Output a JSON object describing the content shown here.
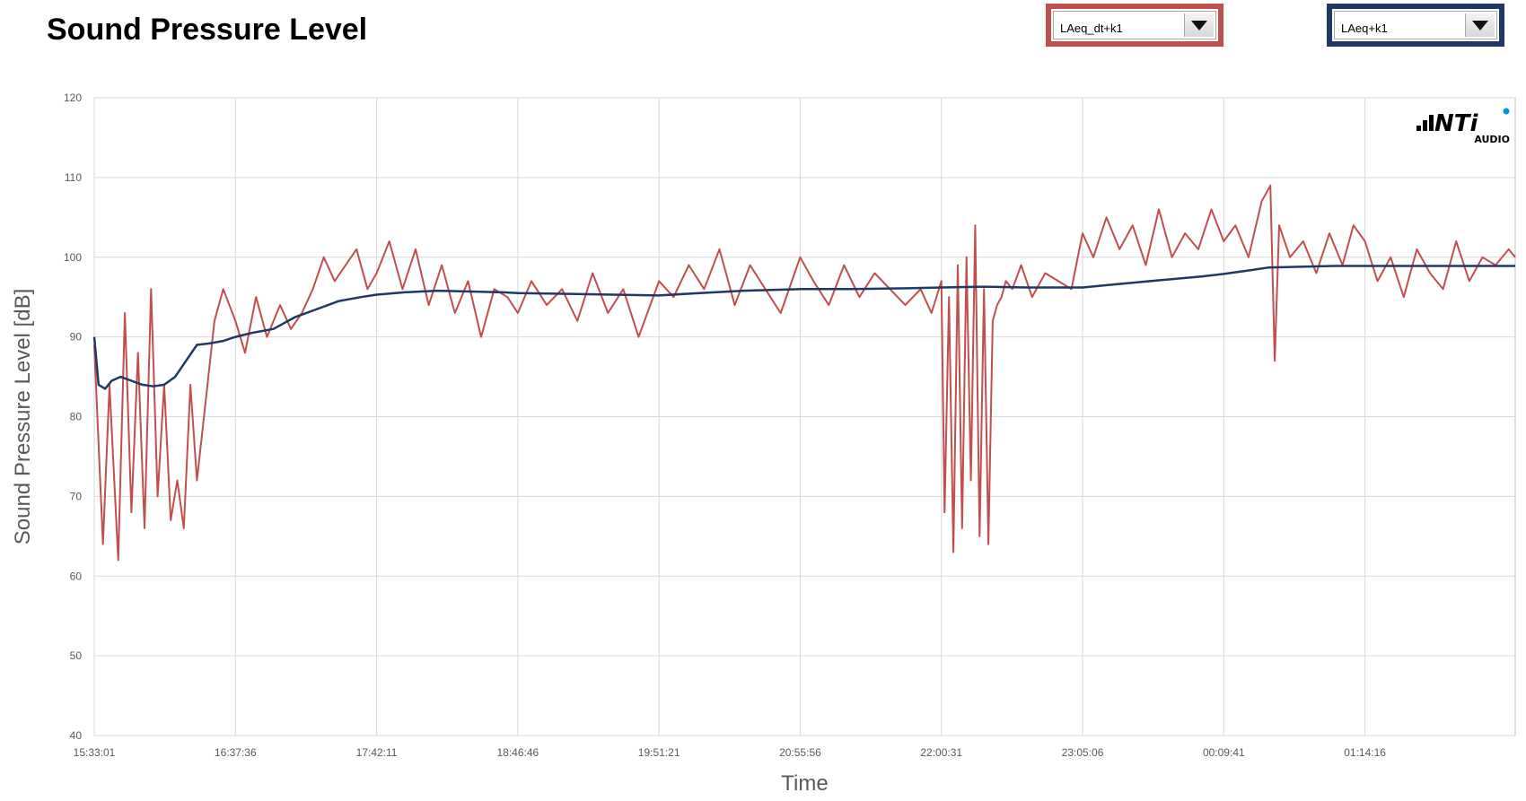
{
  "title": "Sound Pressure Level",
  "dropdowns": [
    {
      "value": "LAeq_dt+k1",
      "border_color": "#c0504d"
    },
    {
      "value": "LAeq+k1",
      "border_color": "#1f3864"
    }
  ],
  "logo": {
    "main": "NTi",
    "sub": "AUDIO"
  },
  "colors": {
    "series_dt": "#c0504d",
    "series_cum": "#1f3864",
    "grid": "#d9d9d9",
    "axis_text": "#595959"
  },
  "chart_data": {
    "type": "line",
    "xlabel": "Time",
    "ylabel": "Sound Pressure Level [dB]",
    "ylim": [
      40,
      120
    ],
    "yticks": [
      40,
      50,
      60,
      70,
      80,
      90,
      100,
      110,
      120
    ],
    "x_start": "15:33:01",
    "x_end": "02:23:00",
    "xticks": [
      "15:33:01",
      "16:37:36",
      "17:42:11",
      "18:46:46",
      "19:51:21",
      "20:55:56",
      "22:00:31",
      "23:05:06",
      "00:09:41",
      "01:14:16"
    ],
    "grid": true,
    "series": [
      {
        "name": "LAeq_dt+k1",
        "x": [
          "15:33:01",
          "15:37:00",
          "15:40:00",
          "15:44:00",
          "15:47:00",
          "15:50:00",
          "15:53:00",
          "15:56:00",
          "15:59:00",
          "16:02:00",
          "16:05:00",
          "16:08:00",
          "16:11:00",
          "16:14:00",
          "16:17:00",
          "16:20:00",
          "16:24:00",
          "16:28:00",
          "16:32:00",
          "16:37:36",
          "16:42:00",
          "16:47:00",
          "16:52:00",
          "16:58:00",
          "17:03:00",
          "17:08:00",
          "17:13:00",
          "17:18:00",
          "17:23:00",
          "17:28:00",
          "17:33:00",
          "17:38:00",
          "17:42:11",
          "17:48:00",
          "17:54:00",
          "18:00:00",
          "18:06:00",
          "18:12:00",
          "18:18:00",
          "18:24:00",
          "18:30:00",
          "18:36:00",
          "18:42:00",
          "18:46:46",
          "18:53:00",
          "19:00:00",
          "19:07:00",
          "19:14:00",
          "19:21:00",
          "19:28:00",
          "19:35:00",
          "19:42:00",
          "19:51:21",
          "19:58:00",
          "20:05:00",
          "20:12:00",
          "20:19:00",
          "20:26:00",
          "20:33:00",
          "20:40:00",
          "20:47:00",
          "20:55:56",
          "21:02:00",
          "21:09:00",
          "21:16:00",
          "21:23:00",
          "21:30:00",
          "21:37:00",
          "21:44:00",
          "21:51:00",
          "21:56:00",
          "22:00:31",
          "22:02:00",
          "22:04:00",
          "22:06:00",
          "22:08:00",
          "22:10:00",
          "22:12:00",
          "22:14:00",
          "22:16:00",
          "22:18:00",
          "22:20:00",
          "22:22:00",
          "22:24:00",
          "22:26:00",
          "22:28:00",
          "22:30:00",
          "22:33:00",
          "22:37:00",
          "22:42:00",
          "22:48:00",
          "22:54:00",
          "23:00:00",
          "23:05:06",
          "23:10:00",
          "23:16:00",
          "23:22:00",
          "23:28:00",
          "23:34:00",
          "23:40:00",
          "23:46:00",
          "23:52:00",
          "23:58:00",
          "00:04:00",
          "00:09:41",
          "00:15:00",
          "00:21:00",
          "00:27:00",
          "00:31:00",
          "00:33:00",
          "00:35:00",
          "00:40:00",
          "00:46:00",
          "00:52:00",
          "00:58:00",
          "01:04:00",
          "01:09:00",
          "01:14:16",
          "01:20:00",
          "01:26:00",
          "01:32:00",
          "01:38:00",
          "01:44:00",
          "01:50:00",
          "01:56:00",
          "02:02:00",
          "02:08:00",
          "02:14:00",
          "02:20:00",
          "02:23:00"
        ],
        "y": [
          89,
          64,
          84,
          62,
          93,
          68,
          88,
          66,
          96,
          70,
          84,
          67,
          72,
          66,
          84,
          72,
          82,
          92,
          96,
          92,
          88,
          95,
          90,
          94,
          91,
          93,
          96,
          100,
          97,
          99,
          101,
          96,
          98,
          102,
          96,
          101,
          94,
          99,
          93,
          97,
          90,
          96,
          95,
          93,
          97,
          94,
          96,
          92,
          98,
          93,
          96,
          90,
          97,
          95,
          99,
          96,
          101,
          94,
          99,
          96,
          93,
          100,
          97,
          94,
          99,
          95,
          98,
          96,
          94,
          96,
          93,
          97,
          68,
          95,
          63,
          99,
          66,
          100,
          72,
          104,
          65,
          96,
          64,
          92,
          94,
          95,
          97,
          96,
          99,
          95,
          98,
          97,
          96,
          103,
          100,
          105,
          101,
          104,
          99,
          106,
          100,
          103,
          101,
          106,
          102,
          104,
          100,
          107,
          109,
          87,
          104,
          100,
          102,
          98,
          103,
          99,
          104,
          102,
          97,
          100,
          95,
          101,
          98,
          96,
          102,
          97,
          100,
          99,
          101,
          100
        ]
      },
      {
        "name": "LAeq+k1",
        "x": [
          "15:33:01",
          "15:35:00",
          "15:38:00",
          "15:41:00",
          "15:45:00",
          "15:50:00",
          "15:55:00",
          "16:00:00",
          "16:05:00",
          "16:10:00",
          "16:15:00",
          "16:20:00",
          "16:26:00",
          "16:32:00",
          "16:37:36",
          "16:45:00",
          "16:55:00",
          "17:05:00",
          "17:15:00",
          "17:25:00",
          "17:35:00",
          "17:42:11",
          "17:55:00",
          "18:10:00",
          "18:25:00",
          "18:40:00",
          "18:46:46",
          "19:10:00",
          "19:30:00",
          "19:51:21",
          "20:10:00",
          "20:30:00",
          "20:55:56",
          "21:20:00",
          "21:45:00",
          "22:00:31",
          "22:20:00",
          "22:40:00",
          "23:05:06",
          "23:20:00",
          "23:40:00",
          "00:00:00",
          "00:09:41",
          "00:20:00",
          "00:30:00",
          "00:45:00",
          "01:00:00",
          "01:14:16",
          "01:30:00",
          "01:50:00",
          "02:10:00",
          "02:23:00"
        ],
        "y": [
          90,
          84,
          83.5,
          84.5,
          85,
          84.5,
          84,
          83.8,
          84,
          85,
          87,
          89,
          89.2,
          89.5,
          90,
          90.5,
          91,
          92.5,
          93.5,
          94.5,
          95,
          95.3,
          95.6,
          95.8,
          95.7,
          95.6,
          95.5,
          95.4,
          95.3,
          95.2,
          95.5,
          95.8,
          96,
          96,
          96.1,
          96.2,
          96.3,
          96.2,
          96.2,
          96.6,
          97.1,
          97.6,
          97.9,
          98.3,
          98.7,
          98.8,
          98.9,
          98.9,
          98.9,
          98.9,
          98.9,
          98.9
        ]
      }
    ]
  }
}
